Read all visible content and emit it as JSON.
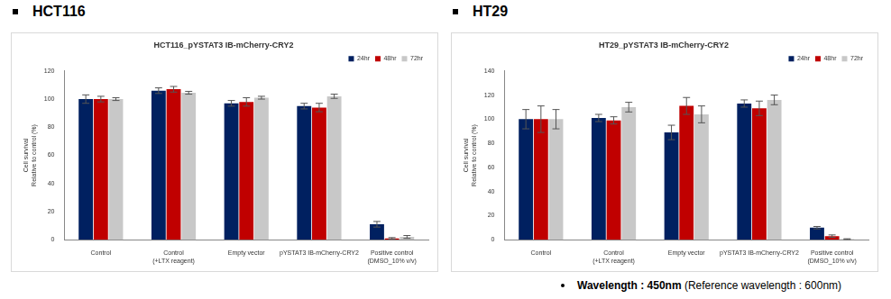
{
  "panel_labels": [
    "HCT116",
    "HT29"
  ],
  "footnote": {
    "label": "Wavelength :",
    "value": "450nm",
    "note": "(Reference wavelength : 600nm)"
  },
  "chart_data": [
    {
      "type": "bar",
      "title": "HCT116_pYSTAT3 IB-mCherry-CRY2",
      "y_label": "Cell survival\nRelative to control (%)",
      "categories": [
        "Control",
        "Control\n(+LTX reagent)",
        "Empty vector",
        "pYSTAT3 IB-mCherry-CRY2",
        "Positive control\n(DMSO_10% v/v)"
      ],
      "series": [
        {
          "name": "24hr",
          "color": "#002060",
          "values": [
            100,
            106,
            97,
            95,
            11
          ],
          "errors": [
            3,
            2,
            2,
            2,
            2
          ]
        },
        {
          "name": "48hr",
          "color": "#c00000",
          "values": [
            100,
            107,
            98,
            94,
            1
          ],
          "errors": [
            2,
            2,
            3,
            3,
            0.5
          ]
        },
        {
          "name": "72hr",
          "color": "#c8c8c8",
          "values": [
            100,
            104.5,
            101,
            102,
            2
          ],
          "errors": [
            1,
            1,
            1,
            1.5,
            1
          ]
        }
      ],
      "ylim": [
        0,
        120
      ],
      "yticks": [
        0,
        20,
        40,
        60,
        80,
        100,
        120
      ],
      "grid": false,
      "legend": "upper right"
    },
    {
      "type": "bar",
      "title": "HT29_pYSTAT3 IB-mCherry-CRY2",
      "y_label": "Cell survival\nRelative to control (%)",
      "categories": [
        "Control",
        "Control\n(+LTX reagent)",
        "Empty vector",
        "pYSTAT3 IB-mCherry-CRY2",
        "Positive control\n(DMSO_10% v/v)"
      ],
      "series": [
        {
          "name": "24hr",
          "color": "#002060",
          "values": [
            100,
            101,
            89,
            113,
            10
          ],
          "errors": [
            8,
            3,
            6,
            3,
            1
          ]
        },
        {
          "name": "48hr",
          "color": "#c00000",
          "values": [
            100,
            99,
            111,
            109,
            3
          ],
          "errors": [
            11,
            3,
            7,
            6,
            1
          ]
        },
        {
          "name": "72hr",
          "color": "#c8c8c8",
          "values": [
            100,
            110,
            104,
            116,
            0.5
          ],
          "errors": [
            8,
            4,
            7,
            4,
            0.3
          ]
        }
      ],
      "ylim": [
        0,
        140
      ],
      "yticks": [
        0,
        20,
        40,
        60,
        80,
        100,
        120,
        140
      ],
      "grid": false,
      "legend": "upper right"
    }
  ]
}
